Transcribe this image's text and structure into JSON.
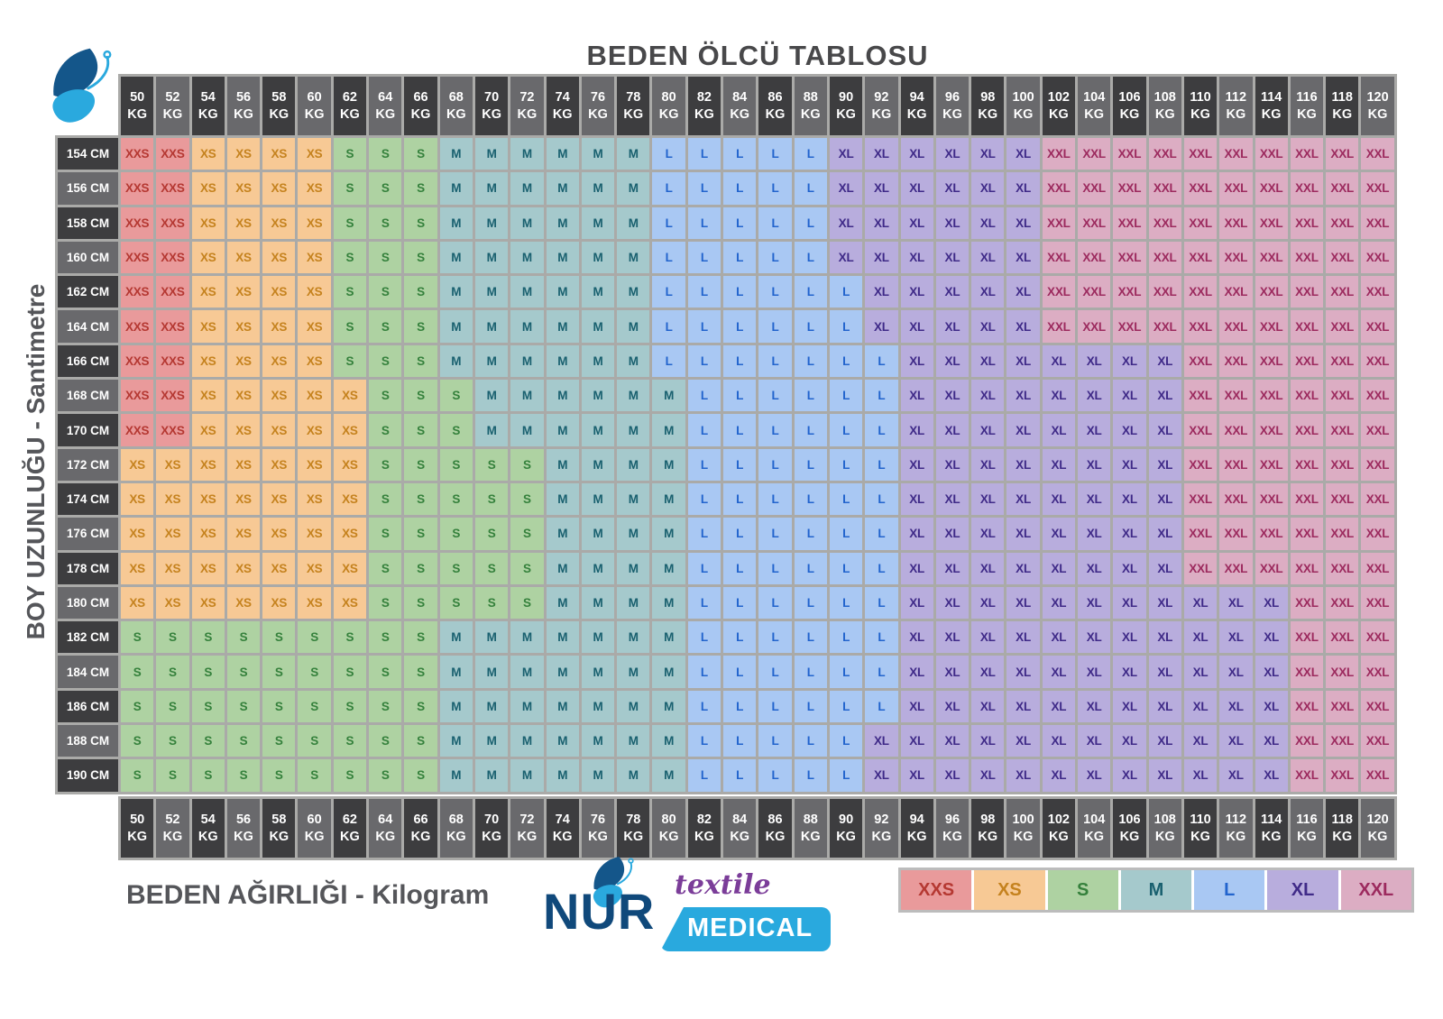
{
  "title": "BEDEN ÖLCÜ TABLOSU",
  "axis": {
    "y_label": "BOY UZUNLUĞU - Santimetre",
    "x_label": "BEDEN AĞIRLIĞI - Kilogram"
  },
  "logo": {
    "name": "NUR",
    "sub1": "textile",
    "sub2": "MEDICAL"
  },
  "sizes": {
    "XXS": {
      "bg": "#e99a9b",
      "fg": "#b53832"
    },
    "XS": {
      "bg": "#f7c995",
      "fg": "#c5821e"
    },
    "S": {
      "bg": "#aed2a2",
      "fg": "#35813c"
    },
    "M": {
      "bg": "#a5c9cc",
      "fg": "#19606f"
    },
    "L": {
      "bg": "#a9c8f3",
      "fg": "#2264cd"
    },
    "XL": {
      "bg": "#b8addd",
      "fg": "#3f2a88"
    },
    "XXL": {
      "bg": "#dcadc3",
      "fg": "#9c2a5e"
    }
  },
  "palette": {
    "header_dark": "#3d3d3f",
    "header_light": "#69696c",
    "header_text": "#ffffff",
    "grid_line": "#aaaaa8",
    "title_color": "#48484a",
    "axis_color": "#55565a",
    "legend_border": "#bcbcbc",
    "nur_color": "#10497b",
    "textile_color": "#7b3d99",
    "medical_bg": "#29a9de",
    "butterfly_dark": "#14568a",
    "butterfly_light": "#2aa9de"
  },
  "chart_data": {
    "type": "heatmap",
    "title": "BEDEN ÖLCÜ TABLOSU",
    "xlabel": "BEDEN AĞIRLIĞI - Kilogram",
    "ylabel": "BOY UZUNLUĞU - Santimetre",
    "x_unit": "KG",
    "y_unit": "CM",
    "legend_position": "bottom-right",
    "legend": [
      "XXS",
      "XS",
      "S",
      "M",
      "L",
      "XL",
      "XXL"
    ],
    "x": [
      50,
      52,
      54,
      56,
      58,
      60,
      62,
      64,
      66,
      68,
      70,
      72,
      74,
      76,
      78,
      80,
      82,
      84,
      86,
      88,
      90,
      92,
      94,
      96,
      98,
      100,
      102,
      104,
      106,
      108,
      110,
      112,
      114,
      116,
      118,
      120
    ],
    "y": [
      154,
      156,
      158,
      160,
      162,
      164,
      166,
      168,
      170,
      172,
      174,
      176,
      178,
      180,
      182,
      184,
      186,
      188,
      190
    ],
    "values": [
      [
        "XXS",
        "XXS",
        "XS",
        "XS",
        "XS",
        "XS",
        "S",
        "S",
        "S",
        "M",
        "M",
        "M",
        "M",
        "M",
        "M",
        "L",
        "L",
        "L",
        "L",
        "L",
        "XL",
        "XL",
        "XL",
        "XL",
        "XL",
        "XL",
        "XXL",
        "XXL",
        "XXL",
        "XXL",
        "XXL",
        "XXL",
        "XXL",
        "XXL",
        "XXL",
        "XXL"
      ],
      [
        "XXS",
        "XXS",
        "XS",
        "XS",
        "XS",
        "XS",
        "S",
        "S",
        "S",
        "M",
        "M",
        "M",
        "M",
        "M",
        "M",
        "L",
        "L",
        "L",
        "L",
        "L",
        "XL",
        "XL",
        "XL",
        "XL",
        "XL",
        "XL",
        "XXL",
        "XXL",
        "XXL",
        "XXL",
        "XXL",
        "XXL",
        "XXL",
        "XXL",
        "XXL",
        "XXL"
      ],
      [
        "XXS",
        "XXS",
        "XS",
        "XS",
        "XS",
        "XS",
        "S",
        "S",
        "S",
        "M",
        "M",
        "M",
        "M",
        "M",
        "M",
        "L",
        "L",
        "L",
        "L",
        "L",
        "XL",
        "XL",
        "XL",
        "XL",
        "XL",
        "XL",
        "XXL",
        "XXL",
        "XXL",
        "XXL",
        "XXL",
        "XXL",
        "XXL",
        "XXL",
        "XXL",
        "XXL"
      ],
      [
        "XXS",
        "XXS",
        "XS",
        "XS",
        "XS",
        "XS",
        "S",
        "S",
        "S",
        "M",
        "M",
        "M",
        "M",
        "M",
        "M",
        "L",
        "L",
        "L",
        "L",
        "L",
        "XL",
        "XL",
        "XL",
        "XL",
        "XL",
        "XL",
        "XXL",
        "XXL",
        "XXL",
        "XXL",
        "XXL",
        "XXL",
        "XXL",
        "XXL",
        "XXL",
        "XXL"
      ],
      [
        "XXS",
        "XXS",
        "XS",
        "XS",
        "XS",
        "XS",
        "S",
        "S",
        "S",
        "M",
        "M",
        "M",
        "M",
        "M",
        "M",
        "L",
        "L",
        "L",
        "L",
        "L",
        "L",
        "XL",
        "XL",
        "XL",
        "XL",
        "XL",
        "XXL",
        "XXL",
        "XXL",
        "XXL",
        "XXL",
        "XXL",
        "XXL",
        "XXL",
        "XXL",
        "XXL"
      ],
      [
        "XXS",
        "XXS",
        "XS",
        "XS",
        "XS",
        "XS",
        "S",
        "S",
        "S",
        "M",
        "M",
        "M",
        "M",
        "M",
        "M",
        "L",
        "L",
        "L",
        "L",
        "L",
        "L",
        "XL",
        "XL",
        "XL",
        "XL",
        "XL",
        "XXL",
        "XXL",
        "XXL",
        "XXL",
        "XXL",
        "XXL",
        "XXL",
        "XXL",
        "XXL",
        "XXL"
      ],
      [
        "XXS",
        "XXS",
        "XS",
        "XS",
        "XS",
        "XS",
        "S",
        "S",
        "S",
        "M",
        "M",
        "M",
        "M",
        "M",
        "M",
        "L",
        "L",
        "L",
        "L",
        "L",
        "L",
        "L",
        "XL",
        "XL",
        "XL",
        "XL",
        "XL",
        "XL",
        "XL",
        "XL",
        "XXL",
        "XXL",
        "XXL",
        "XXL",
        "XXL",
        "XXL"
      ],
      [
        "XXS",
        "XXS",
        "XS",
        "XS",
        "XS",
        "XS",
        "XS",
        "S",
        "S",
        "S",
        "M",
        "M",
        "M",
        "M",
        "M",
        "M",
        "L",
        "L",
        "L",
        "L",
        "L",
        "L",
        "XL",
        "XL",
        "XL",
        "XL",
        "XL",
        "XL",
        "XL",
        "XL",
        "XXL",
        "XXL",
        "XXL",
        "XXL",
        "XXL",
        "XXL"
      ],
      [
        "XXS",
        "XXS",
        "XS",
        "XS",
        "XS",
        "XS",
        "XS",
        "S",
        "S",
        "S",
        "M",
        "M",
        "M",
        "M",
        "M",
        "M",
        "L",
        "L",
        "L",
        "L",
        "L",
        "L",
        "XL",
        "XL",
        "XL",
        "XL",
        "XL",
        "XL",
        "XL",
        "XL",
        "XXL",
        "XXL",
        "XXL",
        "XXL",
        "XXL",
        "XXL"
      ],
      [
        "XS",
        "XS",
        "XS",
        "XS",
        "XS",
        "XS",
        "XS",
        "S",
        "S",
        "S",
        "S",
        "S",
        "M",
        "M",
        "M",
        "M",
        "L",
        "L",
        "L",
        "L",
        "L",
        "L",
        "XL",
        "XL",
        "XL",
        "XL",
        "XL",
        "XL",
        "XL",
        "XL",
        "XXL",
        "XXL",
        "XXL",
        "XXL",
        "XXL",
        "XXL"
      ],
      [
        "XS",
        "XS",
        "XS",
        "XS",
        "XS",
        "XS",
        "XS",
        "S",
        "S",
        "S",
        "S",
        "S",
        "M",
        "M",
        "M",
        "M",
        "L",
        "L",
        "L",
        "L",
        "L",
        "L",
        "XL",
        "XL",
        "XL",
        "XL",
        "XL",
        "XL",
        "XL",
        "XL",
        "XXL",
        "XXL",
        "XXL",
        "XXL",
        "XXL",
        "XXL"
      ],
      [
        "XS",
        "XS",
        "XS",
        "XS",
        "XS",
        "XS",
        "XS",
        "S",
        "S",
        "S",
        "S",
        "S",
        "M",
        "M",
        "M",
        "M",
        "L",
        "L",
        "L",
        "L",
        "L",
        "L",
        "XL",
        "XL",
        "XL",
        "XL",
        "XL",
        "XL",
        "XL",
        "XL",
        "XXL",
        "XXL",
        "XXL",
        "XXL",
        "XXL",
        "XXL"
      ],
      [
        "XS",
        "XS",
        "XS",
        "XS",
        "XS",
        "XS",
        "XS",
        "S",
        "S",
        "S",
        "S",
        "S",
        "M",
        "M",
        "M",
        "M",
        "L",
        "L",
        "L",
        "L",
        "L",
        "L",
        "XL",
        "XL",
        "XL",
        "XL",
        "XL",
        "XL",
        "XL",
        "XL",
        "XXL",
        "XXL",
        "XXL",
        "XXL",
        "XXL",
        "XXL"
      ],
      [
        "XS",
        "XS",
        "XS",
        "XS",
        "XS",
        "XS",
        "XS",
        "S",
        "S",
        "S",
        "S",
        "S",
        "M",
        "M",
        "M",
        "M",
        "L",
        "L",
        "L",
        "L",
        "L",
        "L",
        "XL",
        "XL",
        "XL",
        "XL",
        "XL",
        "XL",
        "XL",
        "XL",
        "XL",
        "XL",
        "XL",
        "XXL",
        "XXL",
        "XXL"
      ],
      [
        "S",
        "S",
        "S",
        "S",
        "S",
        "S",
        "S",
        "S",
        "S",
        "M",
        "M",
        "M",
        "M",
        "M",
        "M",
        "M",
        "L",
        "L",
        "L",
        "L",
        "L",
        "L",
        "XL",
        "XL",
        "XL",
        "XL",
        "XL",
        "XL",
        "XL",
        "XL",
        "XL",
        "XL",
        "XL",
        "XXL",
        "XXL",
        "XXL"
      ],
      [
        "S",
        "S",
        "S",
        "S",
        "S",
        "S",
        "S",
        "S",
        "S",
        "M",
        "M",
        "M",
        "M",
        "M",
        "M",
        "M",
        "L",
        "L",
        "L",
        "L",
        "L",
        "L",
        "XL",
        "XL",
        "XL",
        "XL",
        "XL",
        "XL",
        "XL",
        "XL",
        "XL",
        "XL",
        "XL",
        "XXL",
        "XXL",
        "XXL"
      ],
      [
        "S",
        "S",
        "S",
        "S",
        "S",
        "S",
        "S",
        "S",
        "S",
        "M",
        "M",
        "M",
        "M",
        "M",
        "M",
        "M",
        "L",
        "L",
        "L",
        "L",
        "L",
        "L",
        "XL",
        "XL",
        "XL",
        "XL",
        "XL",
        "XL",
        "XL",
        "XL",
        "XL",
        "XL",
        "XL",
        "XXL",
        "XXL",
        "XXL"
      ],
      [
        "S",
        "S",
        "S",
        "S",
        "S",
        "S",
        "S",
        "S",
        "S",
        "M",
        "M",
        "M",
        "M",
        "M",
        "M",
        "M",
        "L",
        "L",
        "L",
        "L",
        "L",
        "XL",
        "XL",
        "XL",
        "XL",
        "XL",
        "XL",
        "XL",
        "XL",
        "XL",
        "XL",
        "XL",
        "XL",
        "XXL",
        "XXL",
        "XXL"
      ],
      [
        "S",
        "S",
        "S",
        "S",
        "S",
        "S",
        "S",
        "S",
        "S",
        "M",
        "M",
        "M",
        "M",
        "M",
        "M",
        "M",
        "L",
        "L",
        "L",
        "L",
        "L",
        "XL",
        "XL",
        "XL",
        "XL",
        "XL",
        "XL",
        "XL",
        "XL",
        "XL",
        "XL",
        "XL",
        "XL",
        "XXL",
        "XXL",
        "XXL"
      ]
    ]
  }
}
